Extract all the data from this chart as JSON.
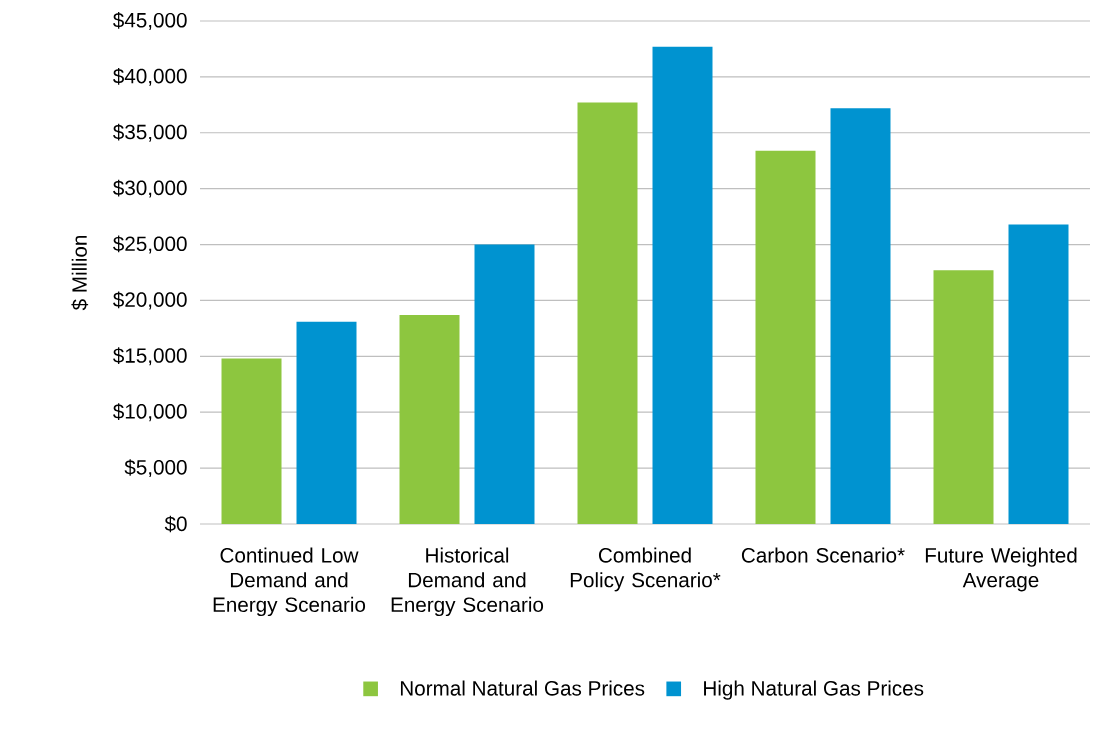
{
  "chart_data": {
    "type": "bar",
    "ylabel": "$ Million",
    "categories": [
      "Continued Low Demand and Energy Scenario",
      "Historical Demand and Energy Scenario",
      "Combined Policy Scenario*",
      "Carbon Scenario*",
      "Future Weighted Average"
    ],
    "series": [
      {
        "name": "Normal Natural Gas Prices",
        "color": "#8dc63f",
        "values": [
          14800,
          18700,
          37700,
          33400,
          22700
        ]
      },
      {
        "name": "High Natural Gas Prices",
        "color": "#0093d0",
        "values": [
          18100,
          25000,
          42700,
          37200,
          26800
        ]
      }
    ],
    "ylim": [
      0,
      45000
    ],
    "yticks": [
      {
        "value": 0,
        "label": "$0"
      },
      {
        "value": 5000,
        "label": "$5,000"
      },
      {
        "value": 10000,
        "label": "$10,000"
      },
      {
        "value": 15000,
        "label": "$15,000"
      },
      {
        "value": 20000,
        "label": "$20,000"
      },
      {
        "value": 25000,
        "label": "$25,000"
      },
      {
        "value": 30000,
        "label": "$30,000"
      },
      {
        "value": 35000,
        "label": "$35,000"
      },
      {
        "value": 40000,
        "label": "$40,000"
      },
      {
        "value": 45000,
        "label": "$45,000"
      }
    ],
    "grid": "y",
    "legend": "bottom"
  }
}
